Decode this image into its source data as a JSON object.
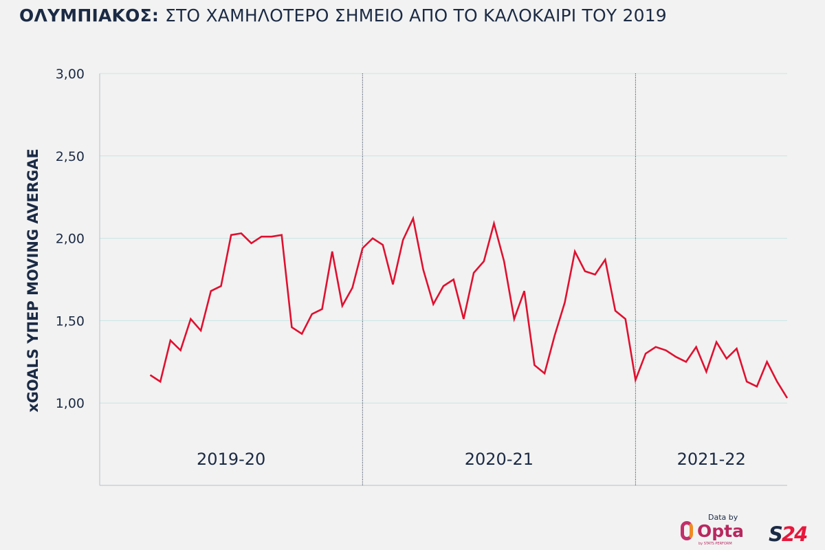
{
  "title_bold": "ΟΛΥΜΠΙΑΚΟΣ:",
  "title_rest": "ΣΤΟ ΧΑΜΗΛΟΤΕΡΟ ΣΗΜΕΙΟ ΑΠΟ ΤΟ ΚΑΛΟΚΑΙΡΙ ΤΟΥ 2019",
  "credit": {
    "data_by": "Data by",
    "opta": "Opta",
    "opta_sub": "by STATS PERFORM",
    "brand": "S24"
  },
  "colors": {
    "line": "#e0102f",
    "grid": "#c6e5e2",
    "text": "#1b2a44",
    "background": "#f2f2f2"
  },
  "chart_data": {
    "type": "line",
    "title": "ΟΛΥΜΠΙΑΚΟΣ: ΣΤΟ ΧΑΜΗΛΟΤΕΡΟ ΣΗΜΕΙΟ ΑΠΟ ΤΟ ΚΑΛΟΚΑΙΡΙ ΤΟΥ 2019",
    "ylabel": "xGOALS ΥΠΕΡ MOVING AVERGAE",
    "xlabel": "",
    "ylim": [
      0.5,
      3.0
    ],
    "xlim": [
      -5,
      63
    ],
    "yticks": [
      1.0,
      1.5,
      2.0,
      2.5,
      3.0
    ],
    "ytick_labels": [
      "1,00",
      "1,50",
      "2,00",
      "2,50",
      "3,00"
    ],
    "grid": true,
    "season_dividers": [
      21,
      48
    ],
    "seasons": [
      {
        "label": "2019-20",
        "center": 8
      },
      {
        "label": "2020-21",
        "center": 34.5
      },
      {
        "label": "2021-22",
        "center": 55.5
      }
    ],
    "series": [
      {
        "name": "xGoals moving average",
        "values": [
          1.17,
          1.13,
          1.38,
          1.32,
          1.51,
          1.44,
          1.68,
          1.71,
          2.02,
          2.03,
          1.97,
          2.01,
          2.01,
          2.02,
          1.46,
          1.42,
          1.54,
          1.57,
          1.92,
          1.59,
          1.7,
          1.94,
          2.0,
          1.96,
          1.72,
          1.99,
          2.12,
          1.81,
          1.6,
          1.71,
          1.75,
          1.51,
          1.79,
          1.86,
          2.09,
          1.86,
          1.51,
          1.68,
          1.23,
          1.18,
          1.41,
          1.61,
          1.92,
          1.8,
          1.78,
          1.87,
          1.56,
          1.51,
          1.14,
          1.3,
          1.34,
          1.32,
          1.28,
          1.25,
          1.34,
          1.19,
          1.37,
          1.27,
          1.33,
          1.13,
          1.1,
          1.25,
          1.13,
          1.03
        ]
      }
    ]
  }
}
